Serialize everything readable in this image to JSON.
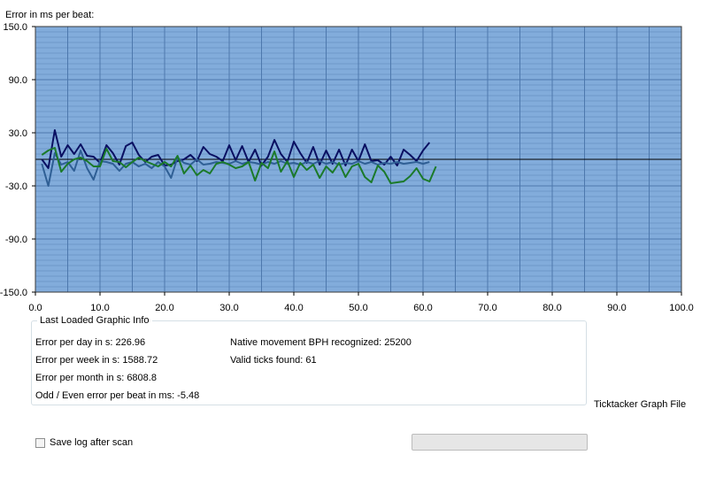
{
  "chart_data": {
    "type": "line",
    "title": "Error in ms per beat:",
    "xlim": [
      0,
      100
    ],
    "ylim": [
      -150,
      150
    ],
    "x_ticks": [
      0,
      10,
      20,
      30,
      40,
      50,
      60,
      70,
      80,
      90,
      100
    ],
    "x_tick_labels": [
      "0.0",
      "10.0",
      "20.0",
      "30.0",
      "40.0",
      "50.0",
      "60.0",
      "70.0",
      "80.0",
      "90.0",
      "100.0"
    ],
    "y_ticks": [
      150,
      90,
      30,
      -30,
      -90,
      -150
    ],
    "y_tick_labels": [
      "150.0",
      "90.0",
      "30.0",
      "-30.0",
      "-90.0",
      "-150.0"
    ],
    "reference_line_y": 0,
    "grid": true,
    "colors": {
      "plot_background": "#82acdb",
      "minor_grid": "#6f98c8",
      "major_grid": "#4d78ad",
      "reference_line": "#000000"
    },
    "series": [
      {
        "color": "#0a1062",
        "x": [
          1,
          2,
          3,
          4,
          5,
          6,
          7,
          8,
          9,
          10,
          11,
          12,
          13,
          14,
          15,
          16,
          17,
          18,
          19,
          20,
          21,
          22,
          23,
          24,
          25,
          26,
          27,
          28,
          29,
          30,
          31,
          32,
          33,
          34,
          35,
          36,
          37,
          38,
          39,
          40,
          41,
          42,
          43,
          44,
          45,
          46,
          47,
          48,
          49,
          50,
          51,
          52,
          53,
          54,
          55,
          56,
          57,
          58,
          59,
          60,
          61
        ],
        "y": [
          0,
          -10,
          33,
          3,
          16,
          6,
          17,
          4,
          3,
          -4,
          16,
          7,
          -6,
          15,
          19,
          5,
          -3,
          3,
          5,
          -7,
          -6,
          -2,
          0,
          5,
          -2,
          14,
          6,
          3,
          -2,
          16,
          -1,
          15,
          -3,
          11,
          -7,
          3,
          22,
          6,
          -3,
          20,
          7,
          -4,
          14,
          -6,
          10,
          -5,
          11,
          -7,
          11,
          -2,
          17,
          -2,
          -1,
          -6,
          3,
          -7,
          11,
          5,
          -2,
          10,
          19
        ]
      },
      {
        "color": "#2f5f95",
        "x": [
          1,
          2,
          3,
          4,
          5,
          6,
          7,
          8,
          9,
          10,
          11,
          12,
          13,
          14,
          15,
          16,
          17,
          18,
          19,
          20,
          21,
          22,
          23,
          24,
          25,
          26,
          27,
          28,
          29,
          30,
          31,
          32,
          33,
          34,
          35,
          36,
          37,
          38,
          39,
          40,
          41,
          42,
          43,
          44,
          45,
          46,
          47,
          48,
          49,
          50,
          51,
          52,
          53,
          54,
          55,
          56,
          57,
          58,
          59,
          60,
          61
        ],
        "y": [
          -5,
          -30,
          7,
          -6,
          -3,
          -13,
          10,
          -10,
          -23,
          -2,
          -3,
          -5,
          -13,
          -5,
          -3,
          -8,
          -5,
          -10,
          -3,
          -8,
          -21,
          2,
          -4,
          -6,
          0,
          -6,
          -5,
          -3,
          -4,
          -5,
          -2,
          -5,
          -3,
          -4,
          -6,
          -3,
          -5,
          -2,
          -5,
          -4,
          -6,
          -3,
          -5,
          -2,
          -5,
          -3,
          -6,
          -4,
          -5,
          -2,
          -5,
          -3,
          -6,
          -4,
          -5,
          -3,
          -5,
          -4,
          -3,
          -5,
          -3
        ]
      },
      {
        "color": "#1b7a2a",
        "x": [
          1,
          2,
          3,
          4,
          5,
          6,
          7,
          8,
          9,
          10,
          11,
          12,
          13,
          14,
          15,
          16,
          17,
          18,
          19,
          20,
          21,
          22,
          23,
          24,
          25,
          26,
          27,
          28,
          29,
          30,
          31,
          32,
          33,
          34,
          35,
          36,
          37,
          38,
          39,
          40,
          41,
          42,
          43,
          44,
          45,
          46,
          47,
          48,
          49,
          50,
          51,
          52,
          53,
          54,
          55,
          56,
          57,
          58,
          59,
          60,
          61,
          62
        ],
        "y": [
          5,
          10,
          13,
          -14,
          -5,
          0,
          2,
          -2,
          -8,
          -8,
          12,
          -2,
          -3,
          -9,
          -3,
          2,
          -2,
          -5,
          -8,
          -3,
          -8,
          4,
          -16,
          -7,
          -18,
          -12,
          -16,
          -5,
          -3,
          -6,
          -10,
          -8,
          -3,
          -24,
          -4,
          -10,
          9,
          -14,
          -2,
          -20,
          -4,
          -12,
          -6,
          -21,
          -8,
          -15,
          -4,
          -20,
          -8,
          -5,
          -20,
          -26,
          -7,
          -14,
          -27,
          -26,
          -25,
          -19,
          -10,
          -22,
          -25,
          -8
        ]
      }
    ]
  },
  "info_group": {
    "title": "Last Loaded Graphic Info",
    "error_per_day": "Error per day in s: 226.96",
    "error_per_week": "Error per week in s: 1588.72",
    "error_per_month": "Error per month in s: 6808.8",
    "odd_even_error": "Odd / Even error per beat in ms: -5.48",
    "native_bph": "Native movement BPH recognized: 25200",
    "valid_ticks": "Valid ticks found: 61"
  },
  "graph_file_label": "Ticktacker Graph File",
  "save_log": {
    "label": "Save log after scan",
    "checked": false
  },
  "progress": {
    "value": 0
  }
}
